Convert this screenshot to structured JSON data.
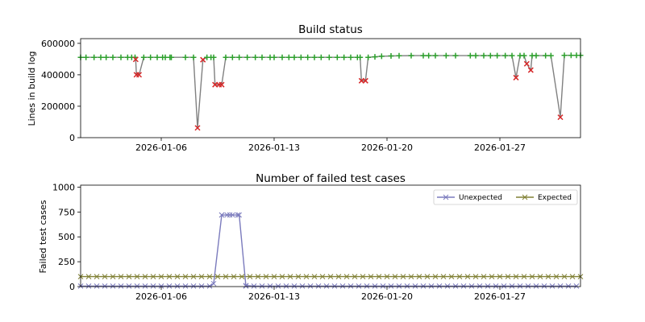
{
  "chart_data": [
    {
      "type": "line",
      "title": "Build status",
      "xlabel": "",
      "ylabel": "Lines in build log",
      "xlim": [
        "2026-01-01",
        "2026-02-01"
      ],
      "ylim": [
        0,
        630000
      ],
      "xticks": [
        "2026-01-06",
        "2026-01-13",
        "2026-01-20",
        "2026-01-27"
      ],
      "yticks": [
        0,
        200000,
        400000,
        600000
      ],
      "ytick_labels": [
        "0",
        "200000",
        "400000",
        "600000"
      ],
      "line_color": "#808080",
      "pass_marker_color": "#2ca02c",
      "fail_marker_color": "#d62728",
      "series": [
        {
          "points": [
            [
              "2026-01-01T00:00",
              511000,
              "pass"
            ],
            [
              "2026-01-01T08:00",
              511000,
              "pass"
            ],
            [
              "2026-01-01T20:00",
              511000,
              "pass"
            ],
            [
              "2026-01-02T06:00",
              511000,
              "pass"
            ],
            [
              "2026-01-02T14:00",
              511000,
              "pass"
            ],
            [
              "2026-01-03T00:00",
              511000,
              "pass"
            ],
            [
              "2026-01-03T12:00",
              511000,
              "pass"
            ],
            [
              "2026-01-03T22:00",
              511000,
              "pass"
            ],
            [
              "2026-01-04T04:00",
              511000,
              "pass"
            ],
            [
              "2026-01-04T09:00",
              511000,
              "pass"
            ],
            [
              "2026-01-04T10:00",
              498000,
              "fail"
            ],
            [
              "2026-01-04T11:00",
              400000,
              "fail"
            ],
            [
              "2026-01-04T15:00",
              400000,
              "fail"
            ],
            [
              "2026-01-04T22:00",
              511000,
              "pass"
            ],
            [
              "2026-01-05T08:00",
              511000,
              "pass"
            ],
            [
              "2026-01-05T18:00",
              511000,
              "pass"
            ],
            [
              "2026-01-06T02:00",
              511000,
              "pass"
            ],
            [
              "2026-01-06T06:00",
              511000,
              "pass"
            ],
            [
              "2026-01-06T13:00",
              511000,
              "pass"
            ],
            [
              "2026-01-06T15:00",
              511000,
              "pass"
            ],
            [
              "2026-01-07T12:00",
              511000,
              "pass"
            ],
            [
              "2026-01-08T00:00",
              511000,
              "pass"
            ],
            [
              "2026-01-08T06:00",
              62000,
              "fail"
            ],
            [
              "2026-01-08T14:00",
              496000,
              "fail"
            ],
            [
              "2026-01-08T20:00",
              511000,
              "pass"
            ],
            [
              "2026-01-09T02:00",
              511000,
              "pass"
            ],
            [
              "2026-01-09T06:00",
              511000,
              "pass"
            ],
            [
              "2026-01-09T08:00",
              337000,
              "fail"
            ],
            [
              "2026-01-09T14:00",
              337000,
              "fail"
            ],
            [
              "2026-01-09T18:00",
              337000,
              "fail"
            ],
            [
              "2026-01-10T00:00",
              511000,
              "pass"
            ],
            [
              "2026-01-10T10:00",
              511000,
              "pass"
            ],
            [
              "2026-01-10T20:00",
              511000,
              "pass"
            ],
            [
              "2026-01-11T08:00",
              511000,
              "pass"
            ],
            [
              "2026-01-11T20:00",
              511000,
              "pass"
            ],
            [
              "2026-01-12T06:00",
              511000,
              "pass"
            ],
            [
              "2026-01-12T18:00",
              511000,
              "pass"
            ],
            [
              "2026-01-13T00:00",
              511000,
              "pass"
            ],
            [
              "2026-01-13T12:00",
              511000,
              "pass"
            ],
            [
              "2026-01-13T22:00",
              511000,
              "pass"
            ],
            [
              "2026-01-14T06:00",
              511000,
              "pass"
            ],
            [
              "2026-01-14T16:00",
              511000,
              "pass"
            ],
            [
              "2026-01-15T02:00",
              511000,
              "pass"
            ],
            [
              "2026-01-15T12:00",
              511000,
              "pass"
            ],
            [
              "2026-01-15T22:00",
              511000,
              "pass"
            ],
            [
              "2026-01-16T10:00",
              511000,
              "pass"
            ],
            [
              "2026-01-16T22:00",
              511000,
              "pass"
            ],
            [
              "2026-01-17T08:00",
              511000,
              "pass"
            ],
            [
              "2026-01-17T18:00",
              511000,
              "pass"
            ],
            [
              "2026-01-18T04:00",
              511000,
              "pass"
            ],
            [
              "2026-01-18T08:00",
              511000,
              "pass"
            ],
            [
              "2026-01-18T10:00",
              362000,
              "fail"
            ],
            [
              "2026-01-18T16:00",
              362000,
              "fail"
            ],
            [
              "2026-01-18T20:00",
              511000,
              "pass"
            ],
            [
              "2026-01-19T06:00",
              514000,
              "pass"
            ],
            [
              "2026-01-19T16:00",
              518000,
              "pass"
            ],
            [
              "2026-01-20T06:00",
              520000,
              "pass"
            ],
            [
              "2026-01-20T18:00",
              521000,
              "pass"
            ],
            [
              "2026-01-21T12:00",
              522000,
              "pass"
            ],
            [
              "2026-01-22T06:00",
              522000,
              "pass"
            ],
            [
              "2026-01-22T14:00",
              522000,
              "pass"
            ],
            [
              "2026-01-23T00:00",
              522000,
              "pass"
            ],
            [
              "2026-01-23T16:00",
              522000,
              "pass"
            ],
            [
              "2026-01-24T06:00",
              522000,
              "pass"
            ],
            [
              "2026-01-25T04:00",
              522000,
              "pass"
            ],
            [
              "2026-01-25T12:00",
              522000,
              "pass"
            ],
            [
              "2026-01-26T00:00",
              522000,
              "pass"
            ],
            [
              "2026-01-26T10:00",
              522000,
              "pass"
            ],
            [
              "2026-01-26T20:00",
              522000,
              "pass"
            ],
            [
              "2026-01-27T08:00",
              522000,
              "pass"
            ],
            [
              "2026-01-27T18:00",
              522000,
              "pass"
            ],
            [
              "2026-01-28T00:00",
              382000,
              "fail"
            ],
            [
              "2026-01-28T06:00",
              522000,
              "pass"
            ],
            [
              "2026-01-28T12:00",
              522000,
              "pass"
            ],
            [
              "2026-01-28T16:00",
              470000,
              "fail"
            ],
            [
              "2026-01-28T22:00",
              430000,
              "fail"
            ],
            [
              "2026-01-29T00:00",
              522000,
              "pass"
            ],
            [
              "2026-01-29T06:00",
              522000,
              "pass"
            ],
            [
              "2026-01-29T20:00",
              522000,
              "pass"
            ],
            [
              "2026-01-30T04:00",
              522000,
              "pass"
            ],
            [
              "2026-01-30T18:00",
              130000,
              "fail"
            ],
            [
              "2026-01-31T00:00",
              524000,
              "pass"
            ],
            [
              "2026-01-31T10:00",
              524000,
              "pass"
            ],
            [
              "2026-01-31T18:00",
              524000,
              "pass"
            ],
            [
              "2026-02-01T00:00",
              524000,
              "pass"
            ]
          ]
        }
      ]
    },
    {
      "type": "line",
      "title": "Number of failed test cases",
      "xlabel": "",
      "ylabel": "Failed test cases",
      "xlim": [
        "2026-01-01",
        "2026-02-01"
      ],
      "ylim": [
        0,
        1020
      ],
      "xticks": [
        "2026-01-06",
        "2026-01-13",
        "2026-01-20",
        "2026-01-27"
      ],
      "yticks": [
        0,
        250,
        500,
        750,
        1000
      ],
      "ytick_labels": [
        "0",
        "250",
        "500",
        "750",
        "1000"
      ],
      "legend_position": "top-right",
      "series": [
        {
          "name": "Unexpected",
          "color": "#7b7bbd",
          "segments": [
            {
              "from": "2026-01-01",
              "to": "2026-01-09T04:00",
              "value": 5
            },
            {
              "from": "2026-01-09T18:00",
              "to": "2026-01-10T20:00",
              "value": 720
            },
            {
              "from": "2026-01-11T06:00",
              "to": "2026-02-01",
              "value": 5
            }
          ],
          "points": [
            [
              "2026-01-09T06:00",
              30
            ],
            [
              "2026-01-09T18:00",
              720
            ],
            [
              "2026-01-10T02:00",
              720
            ],
            [
              "2026-01-10T10:00",
              720
            ],
            [
              "2026-01-10T20:00",
              720
            ],
            [
              "2026-01-11T06:00",
              10
            ]
          ]
        },
        {
          "name": "Expected",
          "color": "#808035",
          "segments": [
            {
              "from": "2026-01-01",
              "to": "2026-02-01",
              "value": 100
            }
          ],
          "points": []
        }
      ]
    }
  ]
}
